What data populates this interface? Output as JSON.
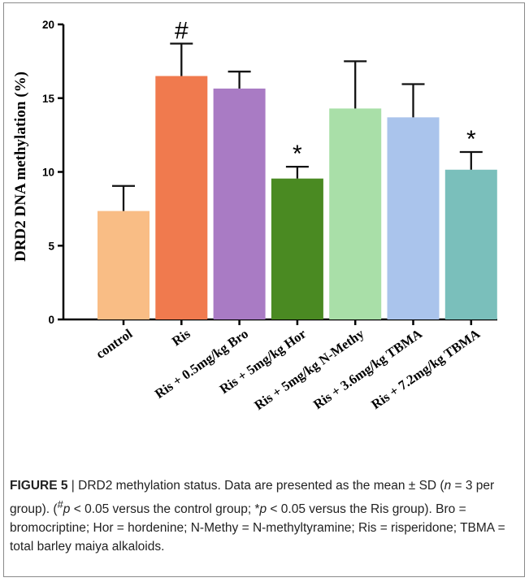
{
  "chart_data": {
    "type": "bar",
    "title": "",
    "xlabel": "",
    "ylabel": "DRD2 DNA methylation (%)",
    "ylim": [
      0,
      20
    ],
    "yticks": [
      0,
      5,
      10,
      15,
      20
    ],
    "grid": false,
    "categories": [
      "control",
      "Ris",
      "Ris + 0.5mg/kg Bro",
      "Ris + 5mg/kg Hor",
      "Ris + 5mg/kg N-Methy",
      "Ris + 3.6mg/kg TBMA",
      "Ris + 7.2mg/kg TBMA"
    ],
    "values": [
      7.35,
      16.5,
      15.65,
      9.55,
      14.3,
      13.7,
      10.15
    ],
    "errors": [
      1.7,
      2.2,
      1.15,
      0.8,
      3.2,
      2.25,
      1.2
    ],
    "colors": [
      "#f9bd85",
      "#f07a4e",
      "#a97bc4",
      "#4a8a22",
      "#a9dfa8",
      "#aac4ec",
      "#7abfbb"
    ],
    "annotations": [
      "",
      "#",
      "",
      "*",
      "",
      "",
      "*"
    ]
  },
  "caption": {
    "figure_label": "FIGURE 5",
    "separator": " | ",
    "part1": "DRD2 methylation status. Data are presented as the mean ± SD (",
    "n_var": "n",
    "part2": " = 3 per group). (",
    "hash": "#",
    "p1": "p",
    "part3": " < 0.05 versus the control group; *",
    "p2": "p",
    "part4": " < 0.05 versus the Ris group). Bro = bromocriptine; Hor = hordenine; N-Methy = N-methyltyramine; Ris = risperidone; TBMA = total barley maiya alkaloids."
  }
}
